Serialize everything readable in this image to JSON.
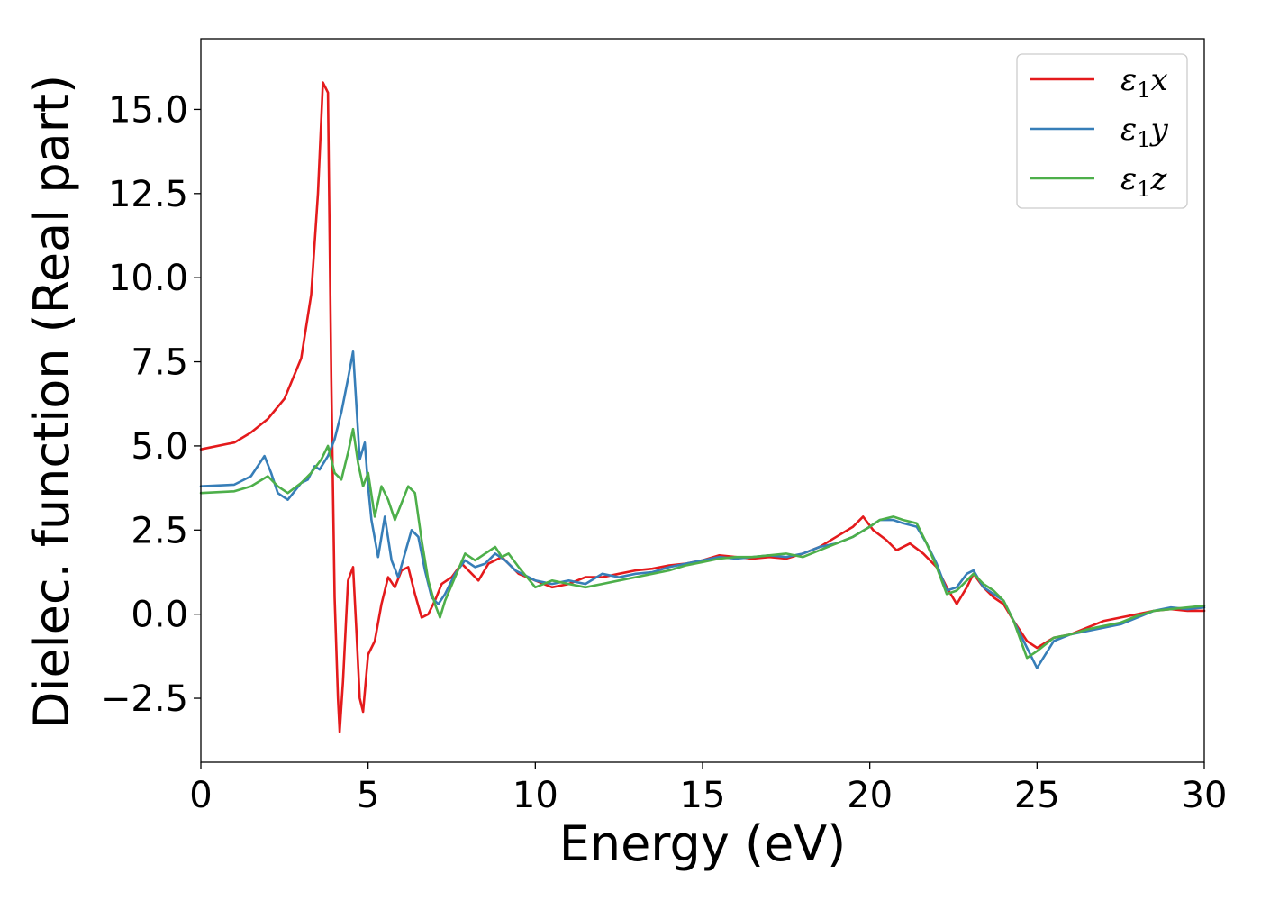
{
  "chart_data": {
    "type": "line",
    "xlabel": "Energy (eV)",
    "ylabel": "Dielec. function (Real part)",
    "xlim": [
      0,
      30
    ],
    "ylim": [
      -4.4,
      17.1
    ],
    "xticks": [
      0,
      5,
      10,
      15,
      20,
      25,
      30
    ],
    "xtick_labels": [
      "0",
      "5",
      "10",
      "15",
      "20",
      "25",
      "30"
    ],
    "yticks": [
      -2.5,
      0.0,
      2.5,
      5.0,
      7.5,
      10.0,
      12.5,
      15.0
    ],
    "ytick_labels": [
      "−2.5",
      "0.0",
      "2.5",
      "5.0",
      "7.5",
      "10.0",
      "12.5",
      "15.0"
    ],
    "grid": false,
    "legend_position": "top-right",
    "series": [
      {
        "name": "ε₁x",
        "legend_main": "ε",
        "legend_sub": "1",
        "legend_var": "x",
        "color": "#e41a1c",
        "x": [
          0,
          1,
          1.5,
          2,
          2.5,
          3,
          3.3,
          3.5,
          3.65,
          3.8,
          3.9,
          4.0,
          4.1,
          4.15,
          4.25,
          4.4,
          4.55,
          4.65,
          4.75,
          4.85,
          5.0,
          5.2,
          5.4,
          5.6,
          5.8,
          6.0,
          6.2,
          6.4,
          6.6,
          6.8,
          7.0,
          7.2,
          7.5,
          7.8,
          8.0,
          8.3,
          8.6,
          9.0,
          9.5,
          10,
          10.5,
          11,
          11.5,
          12,
          12.5,
          13,
          13.5,
          14,
          14.5,
          15,
          15.5,
          16,
          16.5,
          17,
          17.5,
          18,
          18.5,
          19,
          19.5,
          19.8,
          20.1,
          20.5,
          20.8,
          21.2,
          21.6,
          22,
          22.3,
          22.6,
          22.9,
          23.1,
          23.4,
          23.7,
          24,
          24.3,
          24.7,
          25,
          25.5,
          26,
          26.5,
          27,
          27.5,
          28,
          28.5,
          29,
          29.5,
          30
        ],
        "y": [
          4.9,
          5.1,
          5.4,
          5.8,
          6.4,
          7.6,
          9.5,
          12.5,
          15.8,
          15.5,
          7.0,
          0.5,
          -2.5,
          -3.5,
          -2.0,
          1.0,
          1.4,
          -0.5,
          -2.5,
          -2.9,
          -1.2,
          -0.8,
          0.3,
          1.1,
          0.8,
          1.3,
          1.4,
          0.6,
          -0.1,
          0.0,
          0.4,
          0.9,
          1.1,
          1.5,
          1.3,
          1.0,
          1.5,
          1.7,
          1.2,
          1.0,
          0.8,
          0.9,
          1.1,
          1.1,
          1.2,
          1.3,
          1.35,
          1.45,
          1.5,
          1.6,
          1.75,
          1.7,
          1.65,
          1.7,
          1.65,
          1.8,
          2.0,
          2.3,
          2.6,
          2.9,
          2.5,
          2.2,
          1.9,
          2.1,
          1.8,
          1.4,
          0.8,
          0.3,
          0.8,
          1.2,
          0.8,
          0.5,
          0.3,
          -0.2,
          -0.8,
          -1.0,
          -0.7,
          -0.6,
          -0.4,
          -0.2,
          -0.1,
          0.0,
          0.1,
          0.15,
          0.1,
          0.1
        ]
      },
      {
        "name": "ε₁y",
        "legend_main": "ε",
        "legend_sub": "1",
        "legend_var": "y",
        "color": "#377eb8",
        "x": [
          0,
          1,
          1.5,
          1.9,
          2.1,
          2.3,
          2.6,
          3.0,
          3.2,
          3.4,
          3.55,
          3.8,
          4.0,
          4.2,
          4.4,
          4.55,
          4.65,
          4.75,
          4.9,
          5.0,
          5.1,
          5.3,
          5.5,
          5.7,
          5.9,
          6.1,
          6.3,
          6.5,
          6.7,
          6.9,
          7.1,
          7.3,
          7.6,
          7.9,
          8.2,
          8.5,
          8.8,
          9.1,
          9.4,
          10,
          10.5,
          11,
          11.5,
          12,
          12.5,
          13,
          13.5,
          14,
          14.5,
          15,
          15.5,
          16,
          16.5,
          17,
          17.5,
          18,
          18.5,
          19,
          19.5,
          20,
          20.3,
          20.7,
          21,
          21.4,
          21.7,
          22,
          22.3,
          22.6,
          22.9,
          23.1,
          23.4,
          23.7,
          24,
          24.3,
          24.7,
          25,
          25.5,
          26,
          26.5,
          27,
          27.5,
          28,
          28.5,
          29,
          29.5,
          30
        ],
        "y": [
          3.8,
          3.85,
          4.1,
          4.7,
          4.2,
          3.6,
          3.4,
          3.9,
          4.0,
          4.4,
          4.3,
          4.7,
          5.2,
          6.0,
          7.0,
          7.8,
          6.2,
          4.6,
          5.1,
          3.8,
          2.8,
          1.7,
          2.9,
          1.6,
          1.1,
          1.8,
          2.5,
          2.3,
          1.3,
          0.5,
          0.3,
          0.6,
          1.2,
          1.6,
          1.4,
          1.5,
          1.8,
          1.6,
          1.3,
          1.0,
          0.9,
          1.0,
          0.9,
          1.2,
          1.1,
          1.2,
          1.25,
          1.4,
          1.5,
          1.6,
          1.7,
          1.65,
          1.7,
          1.75,
          1.7,
          1.8,
          2.0,
          2.1,
          2.3,
          2.6,
          2.8,
          2.8,
          2.7,
          2.6,
          2.1,
          1.5,
          0.7,
          0.8,
          1.2,
          1.3,
          0.8,
          0.6,
          0.4,
          -0.2,
          -1.0,
          -1.6,
          -0.8,
          -0.6,
          -0.5,
          -0.4,
          -0.3,
          -0.1,
          0.1,
          0.2,
          0.15,
          0.2
        ]
      },
      {
        "name": "ε₁z",
        "legend_main": "ε",
        "legend_sub": "1",
        "legend_var": "z",
        "color": "#4daf4a",
        "x": [
          0,
          1,
          1.5,
          2.0,
          2.3,
          2.6,
          3.0,
          3.3,
          3.6,
          3.8,
          4.0,
          4.2,
          4.4,
          4.55,
          4.7,
          4.85,
          5.0,
          5.2,
          5.4,
          5.6,
          5.8,
          6.0,
          6.2,
          6.4,
          6.6,
          6.8,
          7.0,
          7.15,
          7.3,
          7.6,
          7.9,
          8.2,
          8.5,
          8.8,
          9.0,
          9.2,
          9.5,
          10,
          10.5,
          11,
          11.5,
          12,
          12.5,
          13,
          13.5,
          14,
          14.5,
          15,
          15.5,
          16,
          16.5,
          17,
          17.5,
          18,
          18.5,
          19,
          19.5,
          20,
          20.3,
          20.7,
          21,
          21.4,
          21.7,
          22,
          22.3,
          22.6,
          22.9,
          23.1,
          23.4,
          23.7,
          24,
          24.3,
          24.7,
          25,
          25.5,
          26,
          26.5,
          27,
          27.5,
          28,
          28.5,
          29,
          29.5,
          30
        ],
        "y": [
          3.6,
          3.65,
          3.8,
          4.1,
          3.8,
          3.6,
          3.9,
          4.2,
          4.6,
          5.0,
          4.2,
          4.0,
          4.8,
          5.5,
          4.5,
          3.8,
          4.2,
          2.9,
          3.8,
          3.4,
          2.8,
          3.3,
          3.8,
          3.6,
          2.2,
          1.0,
          0.3,
          -0.1,
          0.4,
          1.1,
          1.8,
          1.6,
          1.8,
          2.0,
          1.7,
          1.8,
          1.4,
          0.8,
          1.0,
          0.9,
          0.8,
          0.9,
          1.0,
          1.1,
          1.2,
          1.3,
          1.45,
          1.55,
          1.65,
          1.7,
          1.7,
          1.75,
          1.8,
          1.7,
          1.9,
          2.1,
          2.3,
          2.6,
          2.8,
          2.9,
          2.8,
          2.7,
          2.1,
          1.4,
          0.6,
          0.7,
          1.0,
          1.2,
          0.9,
          0.7,
          0.4,
          -0.2,
          -1.3,
          -1.1,
          -0.7,
          -0.6,
          -0.45,
          -0.35,
          -0.25,
          -0.05,
          0.1,
          0.15,
          0.2,
          0.25
        ]
      }
    ]
  }
}
